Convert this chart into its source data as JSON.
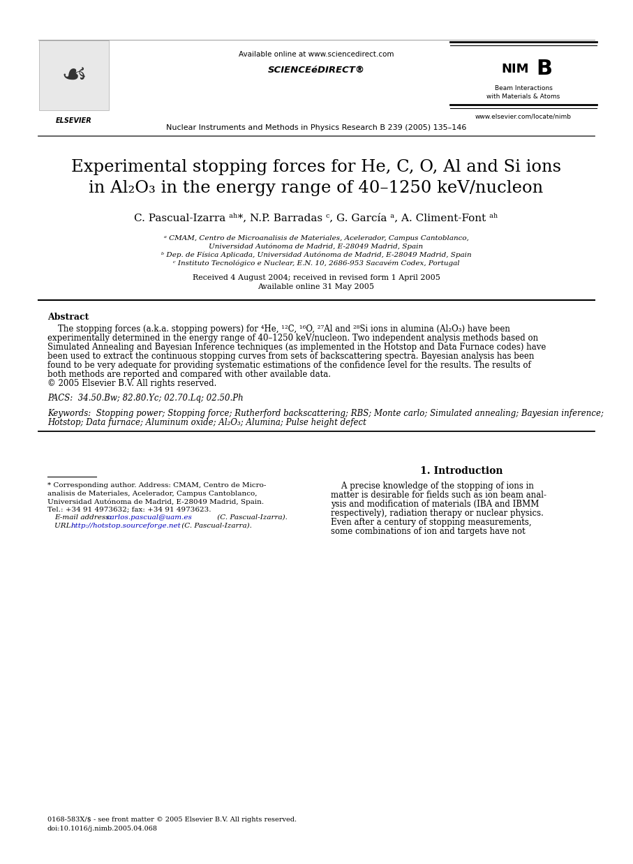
{
  "page_width": 9.07,
  "page_height": 12.38,
  "bg_color": "#ffffff",
  "header_available": "Available online at www.sciencedirect.com",
  "header_sd": "SCIENCEéDIRECT®",
  "journal_name": "Nuclear Instruments and Methods in Physics Research B 239 (2005) 135–146",
  "nimb_line1": "NIM",
  "nimb_line2": "B",
  "nimb_sub1": "Beam Interactions",
  "nimb_sub2": "with Materials & Atoms",
  "nimb_url": "www.elsevier.com/locate/nimb",
  "elsevier": "ELSEVIER",
  "title_line1": "Experimental stopping forces for He, C, O, Al and Si ions",
  "title_line2": "in Al₂O₃ in the energy range of 40–1250 keV/nucleon",
  "authors_line": "C. Pascual-Izarra  a,b,* , N.P. Barradas  c , G. García  a , A. Climent-Font  a,b",
  "affil_a1": "ᵃ CMAM, Centro de Microanalisis de Materiales, Acelerador, Campus Cantoblanco,",
  "affil_a2": "Universidad Autónoma de Madrid, E-28049 Madrid, Spain",
  "affil_b": "ᵇ Dep. de Física Aplicada, Universidad Autónoma de Madrid, E-28049 Madrid, Spain",
  "affil_c": "ᶜ Instituto Tecnológico e Nuclear, E.N. 10, 2686-953 Sacavém Codex, Portugal",
  "received": "Received 4 August 2004; received in revised form 1 April 2005",
  "avail_online": "Available online 31 May 2005",
  "abstract_label": "Abstract",
  "abstract_indent": "    The stopping forces (a.k.a. stopping powers) for ⁴He, ¹²C, ¹⁶O, ²⁷Al and ²⁸Si ions in alumina (Al₂O₃) have been",
  "abstract_lines": [
    "experimentally determined in the energy range of 40–1250 keV/nucleon. Two independent analysis methods based on",
    "Simulated Annealing and Bayesian Inference techniques (as implemented in the Hotstop and Data Furnace codes) have",
    "been used to extract the continuous stopping curves from sets of backscattering spectra. Bayesian analysis has been",
    "found to be very adequate for providing systematic estimations of the confidence level for the results. The results of",
    "both methods are reported and compared with other available data.",
    "© 2005 Elsevier B.V. All rights reserved."
  ],
  "pacs_line": "PACS:  34.50.Bw; 82.80.Yc; 02.70.Lq; 02.50.Ph",
  "kw_line1": "Keywords:  Stopping power; Stopping force; Rutherford backscattering; RBS; Monte carlo; Simulated annealing; Bayesian inference;",
  "kw_line2": "Hotstop; Data furnace; Aluminum oxide; Al₂O₃; Alumina; Pulse height defect",
  "intro_title": "1. Introduction",
  "intro_lines": [
    "    A precise knowledge of the stopping of ions in",
    "matter is desirable for fields such as ion beam anal-",
    "ysis and modification of materials (IBA and IBMM",
    "respectively), radiation therapy or nuclear physics.",
    "Even after a century of stopping measurements,",
    "some combinations of ion and targets have not"
  ],
  "fn_rule_line": true,
  "fn_lines": [
    "* Corresponding author. Address: CMAM, Centro de Micro-",
    "analisis de Materiales, Acelerador, Campus Cantoblanco,",
    "Universidad Autónoma de Madrid, E-28049 Madrid, Spain.",
    "Tel.: +34 91 4973632; fax: +34 91 4973623."
  ],
  "fn_email_label": "E-mail address: ",
  "fn_email_link": "carlos.pascual@uam.es",
  "fn_email_suffix": " (C. Pascual-Izarra).",
  "fn_url_label": "URL: ",
  "fn_url_link": "http://hotstop.sourceforge.net",
  "fn_url_suffix": " (C. Pascual-Izarra).",
  "copyright1": "0168-583X/$ - see front matter © 2005 Elsevier B.V. All rights reserved.",
  "copyright2": "doi:10.1016/j.nimb.2005.04.068",
  "link_color": "#0000bb",
  "text_color": "#000000",
  "line_color": "#000000"
}
